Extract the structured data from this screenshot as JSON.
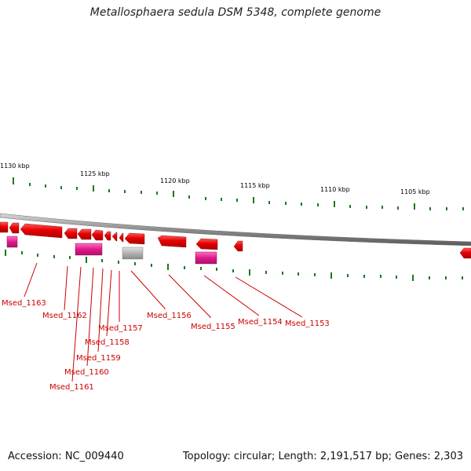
{
  "title": "Metallosphaera sedula DSM 5348, complete genome",
  "footer": {
    "accession": "Accession: NC_009440",
    "summary": "Topology: circular; Length: 2,191,517 bp; Genes: 2,303"
  },
  "scale_labels": [
    "1130 kbp",
    "1125 kbp",
    "1120 kbp",
    "1115 kbp",
    "1110 kbp",
    "1105 kbp"
  ],
  "gene_labels": [
    "Msed_1163",
    "Msed_1162",
    "Msed_1161",
    "Msed_1160",
    "Msed_1159",
    "Msed_1158",
    "Msed_1157",
    "Msed_1156",
    "Msed_1155",
    "Msed_1154",
    "Msed_1153"
  ],
  "colors": {
    "forward_gene": "#e60000",
    "rna_gene": "#e0198a",
    "pseudo_gene": "#b3b3b3",
    "tick": "#1a7a1a",
    "backbone": "#8c8c8c",
    "label": "#cc0000"
  }
}
